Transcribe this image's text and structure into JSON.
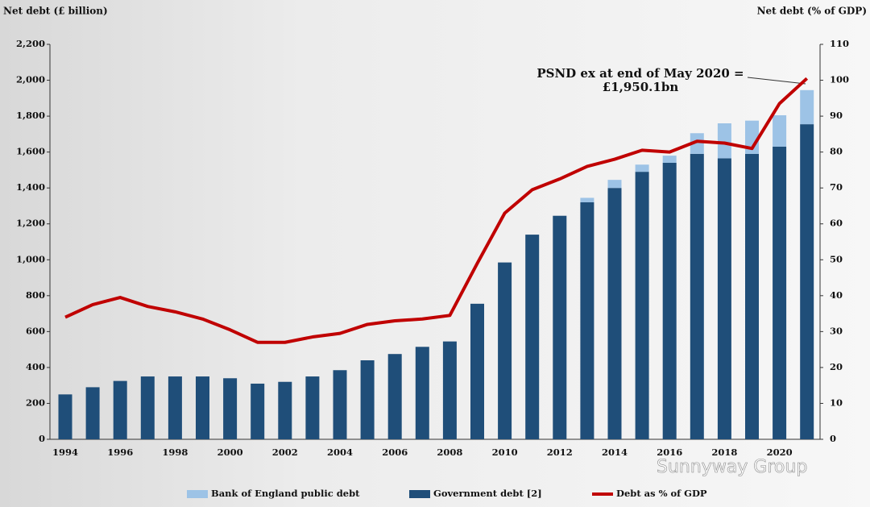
{
  "chart_data": {
    "type": "bar",
    "stacked": true,
    "y_label": "Net debt (£ billion)",
    "y2_label": "Net debt (% of GDP)",
    "annotation": [
      "PSND ex at end of May 2020 =",
      "£1,950.1bn"
    ],
    "watermark": "Sunnyway Group",
    "categories": [
      "1994",
      null,
      "1996",
      null,
      "1998",
      null,
      "2000",
      null,
      "2002",
      null,
      "2004",
      null,
      "2006",
      null,
      "2008",
      null,
      "2010",
      null,
      "2012",
      null,
      "2014",
      null,
      "2016",
      null,
      "2018",
      null,
      "2020",
      null
    ],
    "series": [
      {
        "name": "Government debt [2]",
        "color": "#1f4e79",
        "values": [
          250,
          290,
          325,
          350,
          350,
          350,
          340,
          310,
          320,
          350,
          385,
          440,
          475,
          515,
          545,
          755,
          985,
          1140,
          1245,
          1320,
          1400,
          1490,
          1540,
          1590,
          1565,
          1590,
          1630,
          1755
        ]
      },
      {
        "name": "Bank of England public debt",
        "color": "#9dc3e6",
        "values": [
          0,
          0,
          0,
          0,
          0,
          0,
          0,
          0,
          0,
          0,
          0,
          0,
          0,
          0,
          0,
          0,
          0,
          0,
          0,
          25,
          45,
          40,
          40,
          115,
          195,
          185,
          175,
          190
        ]
      },
      {
        "name": "Debt as % of GDP",
        "color": "#c00000",
        "axis": "y2",
        "values": [
          34,
          37.5,
          39.5,
          37,
          35.5,
          33.5,
          30.5,
          27,
          27,
          28.5,
          29.5,
          32,
          33,
          33.5,
          34.5,
          49,
          63,
          69.5,
          72.5,
          76,
          78,
          80.5,
          80,
          83,
          82.5,
          81,
          93.5,
          100.5
        ]
      }
    ],
    "legend_order": [
      1,
      0,
      2
    ],
    "ylim": [
      0,
      2200
    ],
    "yticks": [
      0,
      200,
      400,
      600,
      800,
      {
        "value": 1000,
        "label": "1,000"
      },
      {
        "value": 1200,
        "label": "1,200"
      },
      {
        "value": 1400,
        "label": "1,400"
      },
      {
        "value": 1600,
        "label": "1,600"
      },
      {
        "value": 1800,
        "label": "1,800"
      },
      {
        "value": 2000,
        "label": "2,000"
      },
      {
        "value": 2200,
        "label": "2,200"
      }
    ],
    "y2lim": [
      0,
      110
    ],
    "y2ticks": [
      0,
      10,
      20,
      30,
      40,
      50,
      60,
      70,
      80,
      90,
      100,
      110
    ]
  }
}
